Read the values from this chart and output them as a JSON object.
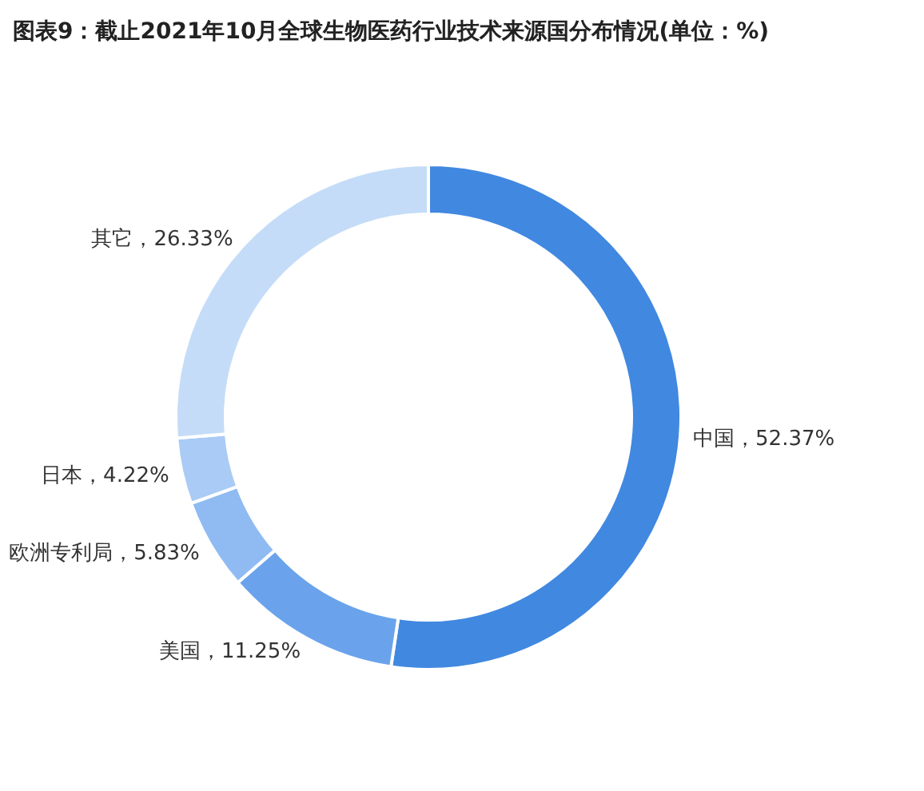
{
  "chart_data": {
    "type": "donut",
    "title": "图表9：截止2021年10月全球生物医药行业技术来源国分布情况(单位：%)",
    "categories": [
      "中国",
      "美国",
      "欧洲专利局",
      "日本",
      "其它"
    ],
    "values": [
      52.37,
      11.25,
      5.83,
      4.22,
      26.33
    ],
    "value_labels": [
      "52.37%",
      "11.25%",
      "5.83%",
      "4.22%",
      "26.33%"
    ],
    "colors": [
      "#4188e0",
      "#6aa3ec",
      "#8fbbf2",
      "#a9cbf5",
      "#c4dcf8"
    ]
  }
}
